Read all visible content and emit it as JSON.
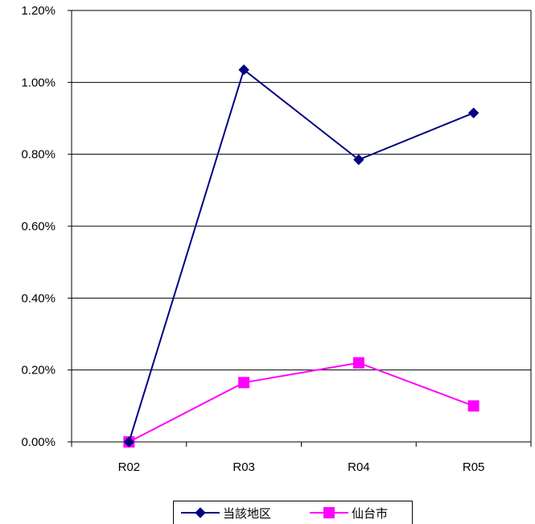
{
  "chart_data": {
    "type": "line",
    "title": "",
    "xlabel": "",
    "ylabel": "",
    "categories": [
      "R02",
      "R03",
      "R04",
      "R05"
    ],
    "ylim": [
      0,
      1.2
    ],
    "y_ticks": [
      0,
      0.2,
      0.4,
      0.6,
      0.8,
      1.0,
      1.2
    ],
    "y_tick_labels": [
      "0.00%",
      "0.20%",
      "0.40%",
      "0.60%",
      "0.80%",
      "1.00%",
      "1.20%"
    ],
    "grid": "horizontal",
    "legend_position": "bottom-center",
    "series": [
      {
        "name": "当該地区",
        "values": [
          0.0,
          1.035,
          0.785,
          0.915
        ],
        "color": "#000080",
        "marker": "diamond"
      },
      {
        "name": "仙台市",
        "values": [
          0.0,
          0.165,
          0.22,
          0.1
        ],
        "color": "#ff00ff",
        "marker": "square"
      }
    ]
  }
}
